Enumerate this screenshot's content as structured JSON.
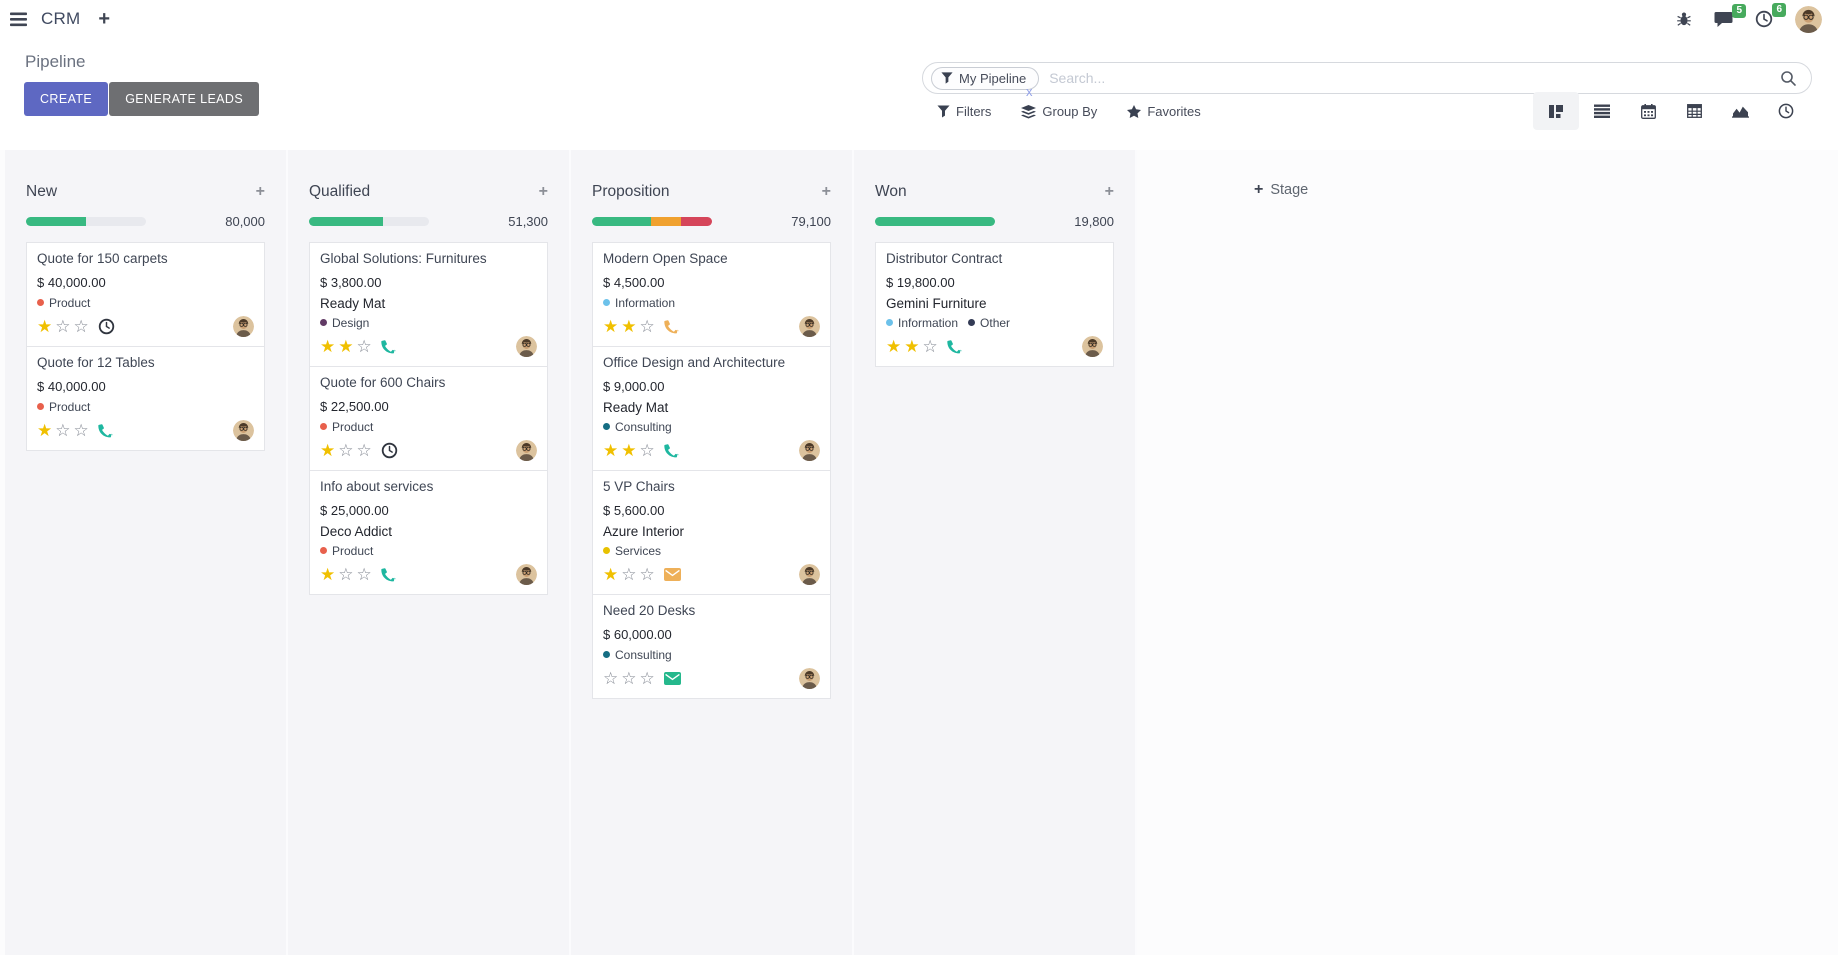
{
  "navbar": {
    "app_name": "CRM",
    "messages_badge": "5",
    "activities_badge": "6"
  },
  "control_panel": {
    "title": "Pipeline",
    "create_label": "CREATE",
    "generate_leads_label": "GENERATE LEADS",
    "search": {
      "facet_label": "My Pipeline",
      "placeholder": "Search...",
      "close_glyph": "x"
    },
    "menus": [
      {
        "label": "Filters",
        "icon": "filter-icon"
      },
      {
        "label": "Group By",
        "icon": "layers-icon"
      },
      {
        "label": "Favorites",
        "icon": "star-icon"
      }
    ],
    "view_switcher": [
      {
        "name": "kanban",
        "active": true
      },
      {
        "name": "list",
        "active": false
      },
      {
        "name": "calendar",
        "active": false
      },
      {
        "name": "pivot",
        "active": false
      },
      {
        "name": "graph",
        "active": false
      },
      {
        "name": "activity",
        "active": false
      }
    ]
  },
  "colors": {
    "primary": "#5e68c2",
    "badge_green": "#47aa5d",
    "progress_green": "#38b981",
    "progress_orange": "#f0a12f",
    "progress_red": "#d5455a",
    "star_gold": "#f0c000"
  },
  "board": {
    "add_stage_label": "Stage",
    "columns": [
      {
        "title": "New",
        "amount_total": "80,000",
        "progress": [
          {
            "name": "success",
            "color": "#38b981",
            "pct": 50
          },
          {
            "name": "empty",
            "color": "#e8e9ee",
            "pct": 50
          }
        ],
        "cards": [
          {
            "title": "Quote for 150 carpets",
            "amount": "$ 40,000.00",
            "partner": "",
            "tags": [
              {
                "label": "Product",
                "color": "#e8604c"
              }
            ],
            "stars_filled": 1,
            "stars_total": 3,
            "activity": {
              "icon": "clock-icon",
              "color": "#30353f"
            }
          },
          {
            "title": "Quote for 12 Tables",
            "amount": "$ 40,000.00",
            "partner": "",
            "tags": [
              {
                "label": "Product",
                "color": "#e8604c"
              }
            ],
            "stars_filled": 1,
            "stars_total": 3,
            "activity": {
              "icon": "phone-icon",
              "color": "#1eb7a0"
            }
          }
        ]
      },
      {
        "title": "Qualified",
        "amount_total": "51,300",
        "progress": [
          {
            "name": "success",
            "color": "#38b981",
            "pct": 62
          },
          {
            "name": "empty",
            "color": "#e8e9ee",
            "pct": 38
          }
        ],
        "cards": [
          {
            "title": "Global Solutions: Furnitures",
            "amount": "$ 3,800.00",
            "partner": "Ready Mat",
            "tags": [
              {
                "label": "Design",
                "color": "#613a65"
              }
            ],
            "stars_filled": 2,
            "stars_total": 3,
            "activity": {
              "icon": "phone-icon",
              "color": "#1eb7a0"
            }
          },
          {
            "title": "Quote for 600 Chairs",
            "amount": "$ 22,500.00",
            "partner": "",
            "tags": [
              {
                "label": "Product",
                "color": "#e8604c"
              }
            ],
            "stars_filled": 1,
            "stars_total": 3,
            "activity": {
              "icon": "clock-icon",
              "color": "#30353f"
            }
          },
          {
            "title": "Info about services",
            "amount": "$ 25,000.00",
            "partner": "Deco Addict",
            "tags": [
              {
                "label": "Product",
                "color": "#e8604c"
              }
            ],
            "stars_filled": 1,
            "stars_total": 3,
            "activity": {
              "icon": "phone-icon",
              "color": "#1eb7a0"
            }
          }
        ]
      },
      {
        "title": "Proposition",
        "amount_total": "79,100",
        "progress": [
          {
            "name": "success",
            "color": "#38b981",
            "pct": 49
          },
          {
            "name": "warning",
            "color": "#f0a12f",
            "pct": 25
          },
          {
            "name": "danger",
            "color": "#d5455a",
            "pct": 26
          }
        ],
        "cards": [
          {
            "title": "Modern Open Space",
            "amount": "$ 4,500.00",
            "partner": "",
            "tags": [
              {
                "label": "Information",
                "color": "#6cc1ea"
              }
            ],
            "stars_filled": 2,
            "stars_total": 3,
            "activity": {
              "icon": "phone-icon",
              "color": "#eeb059"
            }
          },
          {
            "title": "Office Design and Architecture",
            "amount": "$ 9,000.00",
            "partner": "Ready Mat",
            "tags": [
              {
                "label": "Consulting",
                "color": "#156e83"
              }
            ],
            "stars_filled": 2,
            "stars_total": 3,
            "activity": {
              "icon": "phone-icon",
              "color": "#1eb7a0"
            }
          },
          {
            "title": "5 VP Chairs",
            "amount": "$ 5,600.00",
            "partner": "Azure Interior",
            "tags": [
              {
                "label": "Services",
                "color": "#e7c100"
              }
            ],
            "stars_filled": 1,
            "stars_total": 3,
            "activity": {
              "icon": "envelope-icon",
              "color": "#eeb059"
            }
          },
          {
            "title": "Need 20 Desks",
            "amount": "$ 60,000.00",
            "partner": "",
            "tags": [
              {
                "label": "Consulting",
                "color": "#156e83"
              }
            ],
            "stars_filled": 0,
            "stars_total": 3,
            "activity": {
              "icon": "envelope-icon",
              "color": "#25b88c"
            }
          }
        ]
      },
      {
        "title": "Won",
        "amount_total": "19,800",
        "progress": [
          {
            "name": "success",
            "color": "#38b981",
            "pct": 100
          }
        ],
        "cards": [
          {
            "title": "Distributor Contract",
            "amount": "$ 19,800.00",
            "partner": "Gemini Furniture",
            "tags": [
              {
                "label": "Information",
                "color": "#6cc1ea"
              },
              {
                "label": "Other",
                "color": "#333b55"
              }
            ],
            "stars_filled": 2,
            "stars_total": 3,
            "activity": {
              "icon": "phone-icon",
              "color": "#1eb7a0"
            }
          }
        ]
      }
    ]
  }
}
